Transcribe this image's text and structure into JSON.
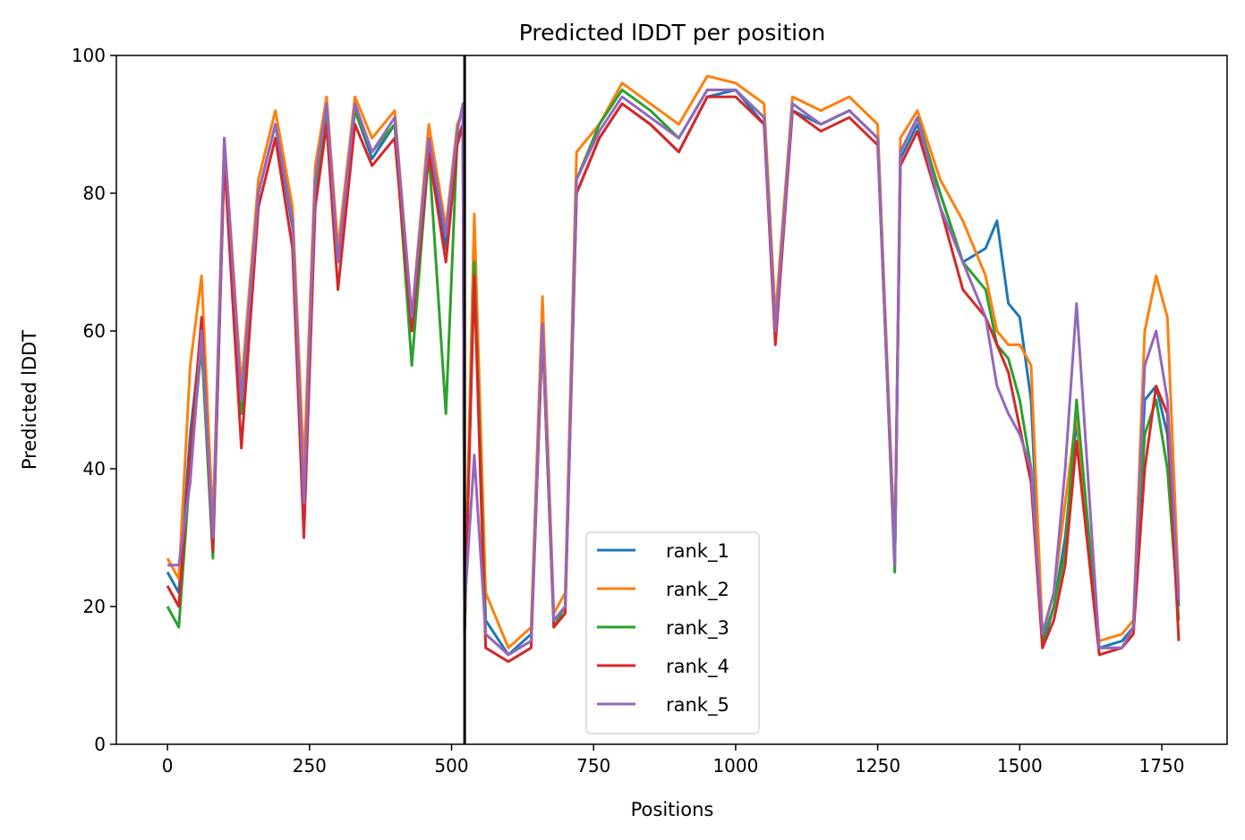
{
  "chart_data": {
    "type": "line",
    "title": "Predicted lDDT per position",
    "xlabel": "Positions",
    "ylabel": "Predicted lDDT",
    "xlim": [
      -90,
      1865
    ],
    "ylim": [
      0,
      100
    ],
    "xticks": [
      0,
      250,
      500,
      750,
      1000,
      1250,
      1500,
      1750
    ],
    "yticks": [
      0,
      20,
      40,
      60,
      80,
      100
    ],
    "grid": false,
    "legend_position": "lower-center",
    "chain_break_x": 523,
    "series": [
      {
        "name": "rank_1",
        "color": "#1f77b4",
        "x": [
          0,
          20,
          40,
          60,
          80,
          100,
          130,
          160,
          190,
          220,
          240,
          260,
          280,
          300,
          330,
          360,
          400,
          430,
          460,
          490,
          510,
          520,
          523,
          540,
          560,
          600,
          640,
          660,
          680,
          700,
          720,
          760,
          800,
          850,
          900,
          950,
          1000,
          1050,
          1070,
          1100,
          1150,
          1200,
          1250,
          1280,
          1290,
          1320,
          1360,
          1400,
          1440,
          1460,
          1480,
          1500,
          1520,
          1540,
          1560,
          1580,
          1600,
          1640,
          1680,
          1700,
          1720,
          1740,
          1760,
          1780
        ],
        "y": [
          25,
          22,
          45,
          60,
          30,
          85,
          50,
          80,
          90,
          75,
          32,
          80,
          92,
          70,
          92,
          85,
          90,
          60,
          88,
          72,
          88,
          90,
          17,
          75,
          18,
          13,
          16,
          60,
          18,
          20,
          80,
          88,
          93,
          90,
          86,
          94,
          95,
          90,
          60,
          92,
          90,
          92,
          88,
          26,
          85,
          90,
          80,
          70,
          72,
          76,
          64,
          62,
          50,
          14,
          20,
          30,
          47,
          14,
          15,
          17,
          50,
          52,
          45,
          20
        ]
      },
      {
        "name": "rank_2",
        "color": "#ff7f0e",
        "x": [
          0,
          20,
          40,
          60,
          80,
          100,
          130,
          160,
          190,
          220,
          240,
          260,
          280,
          300,
          330,
          360,
          400,
          430,
          460,
          490,
          510,
          520,
          523,
          540,
          560,
          600,
          640,
          660,
          680,
          700,
          720,
          760,
          800,
          850,
          900,
          950,
          1000,
          1050,
          1070,
          1100,
          1150,
          1200,
          1250,
          1280,
          1290,
          1320,
          1360,
          1400,
          1440,
          1460,
          1480,
          1500,
          1520,
          1540,
          1560,
          1580,
          1600,
          1640,
          1680,
          1700,
          1720,
          1740,
          1760,
          1780
        ],
        "y": [
          27,
          24,
          55,
          68,
          32,
          88,
          52,
          82,
          92,
          78,
          40,
          84,
          94,
          72,
          94,
          88,
          92,
          62,
          90,
          75,
          90,
          92,
          18,
          77,
          22,
          14,
          17,
          65,
          19,
          22,
          86,
          90,
          96,
          93,
          90,
          97,
          96,
          93,
          62,
          94,
          92,
          94,
          90,
          28,
          88,
          92,
          82,
          76,
          68,
          60,
          58,
          58,
          55,
          16,
          22,
          35,
          48,
          15,
          16,
          18,
          60,
          68,
          62,
          22
        ]
      },
      {
        "name": "rank_3",
        "color": "#2ca02c",
        "x": [
          0,
          20,
          40,
          60,
          80,
          100,
          130,
          160,
          190,
          220,
          240,
          260,
          280,
          300,
          330,
          360,
          400,
          430,
          460,
          490,
          510,
          520,
          523,
          540,
          560,
          600,
          640,
          660,
          680,
          700,
          720,
          760,
          800,
          850,
          900,
          950,
          1000,
          1050,
          1070,
          1100,
          1150,
          1200,
          1250,
          1280,
          1290,
          1320,
          1360,
          1400,
          1440,
          1460,
          1480,
          1500,
          1520,
          1540,
          1560,
          1580,
          1600,
          1640,
          1680,
          1700,
          1720,
          1740,
          1760,
          1780
        ],
        "y": [
          20,
          17,
          40,
          58,
          27,
          86,
          48,
          80,
          90,
          76,
          33,
          80,
          92,
          70,
          92,
          86,
          90,
          55,
          86,
          48,
          88,
          90,
          16,
          70,
          16,
          13,
          15,
          60,
          17,
          20,
          82,
          90,
          95,
          92,
          88,
          95,
          95,
          91,
          60,
          93,
          90,
          92,
          88,
          25,
          86,
          91,
          80,
          70,
          66,
          58,
          56,
          50,
          40,
          15,
          20,
          28,
          50,
          14,
          14,
          17,
          45,
          50,
          40,
          18
        ]
      },
      {
        "name": "rank_4",
        "color": "#d62728",
        "x": [
          0,
          20,
          40,
          60,
          80,
          100,
          130,
          160,
          190,
          220,
          240,
          260,
          280,
          300,
          330,
          360,
          400,
          430,
          460,
          490,
          510,
          520,
          523,
          540,
          560,
          600,
          640,
          660,
          680,
          700,
          720,
          760,
          800,
          850,
          900,
          950,
          1000,
          1050,
          1070,
          1100,
          1150,
          1200,
          1250,
          1280,
          1290,
          1320,
          1360,
          1400,
          1440,
          1460,
          1480,
          1500,
          1520,
          1540,
          1560,
          1580,
          1600,
          1640,
          1680,
          1700,
          1720,
          1740,
          1760,
          1780
        ],
        "y": [
          23,
          20,
          42,
          62,
          28,
          85,
          43,
          78,
          88,
          72,
          30,
          78,
          90,
          66,
          90,
          84,
          88,
          60,
          86,
          70,
          87,
          90,
          17,
          68,
          14,
          12,
          14,
          60,
          17,
          19,
          80,
          88,
          93,
          90,
          86,
          94,
          94,
          90,
          58,
          92,
          89,
          91,
          87,
          27,
          84,
          89,
          78,
          66,
          62,
          58,
          54,
          46,
          38,
          14,
          18,
          26,
          44,
          13,
          14,
          16,
          40,
          52,
          48,
          15
        ]
      },
      {
        "name": "rank_5",
        "color": "#9467bd",
        "x": [
          0,
          20,
          40,
          60,
          80,
          100,
          130,
          160,
          190,
          220,
          240,
          260,
          280,
          300,
          330,
          360,
          400,
          430,
          460,
          490,
          510,
          520,
          523,
          540,
          560,
          600,
          640,
          660,
          680,
          700,
          720,
          760,
          800,
          850,
          900,
          950,
          1000,
          1050,
          1070,
          1100,
          1150,
          1200,
          1250,
          1280,
          1290,
          1320,
          1360,
          1400,
          1440,
          1460,
          1480,
          1500,
          1520,
          1540,
          1560,
          1580,
          1600,
          1640,
          1680,
          1700,
          1720,
          1740,
          1760,
          1780
        ],
        "y": [
          26,
          26,
          38,
          60,
          30,
          88,
          50,
          80,
          90,
          76,
          35,
          82,
          93,
          70,
          93,
          86,
          91,
          62,
          88,
          74,
          89,
          93,
          20,
          42,
          16,
          13,
          15,
          61,
          18,
          20,
          82,
          89,
          94,
          91,
          88,
          95,
          95,
          91,
          60,
          93,
          90,
          92,
          88,
          26,
          86,
          91,
          78,
          70,
          62,
          52,
          48,
          45,
          40,
          16,
          22,
          40,
          64,
          14,
          14,
          17,
          55,
          60,
          50,
          21
        ]
      }
    ]
  }
}
